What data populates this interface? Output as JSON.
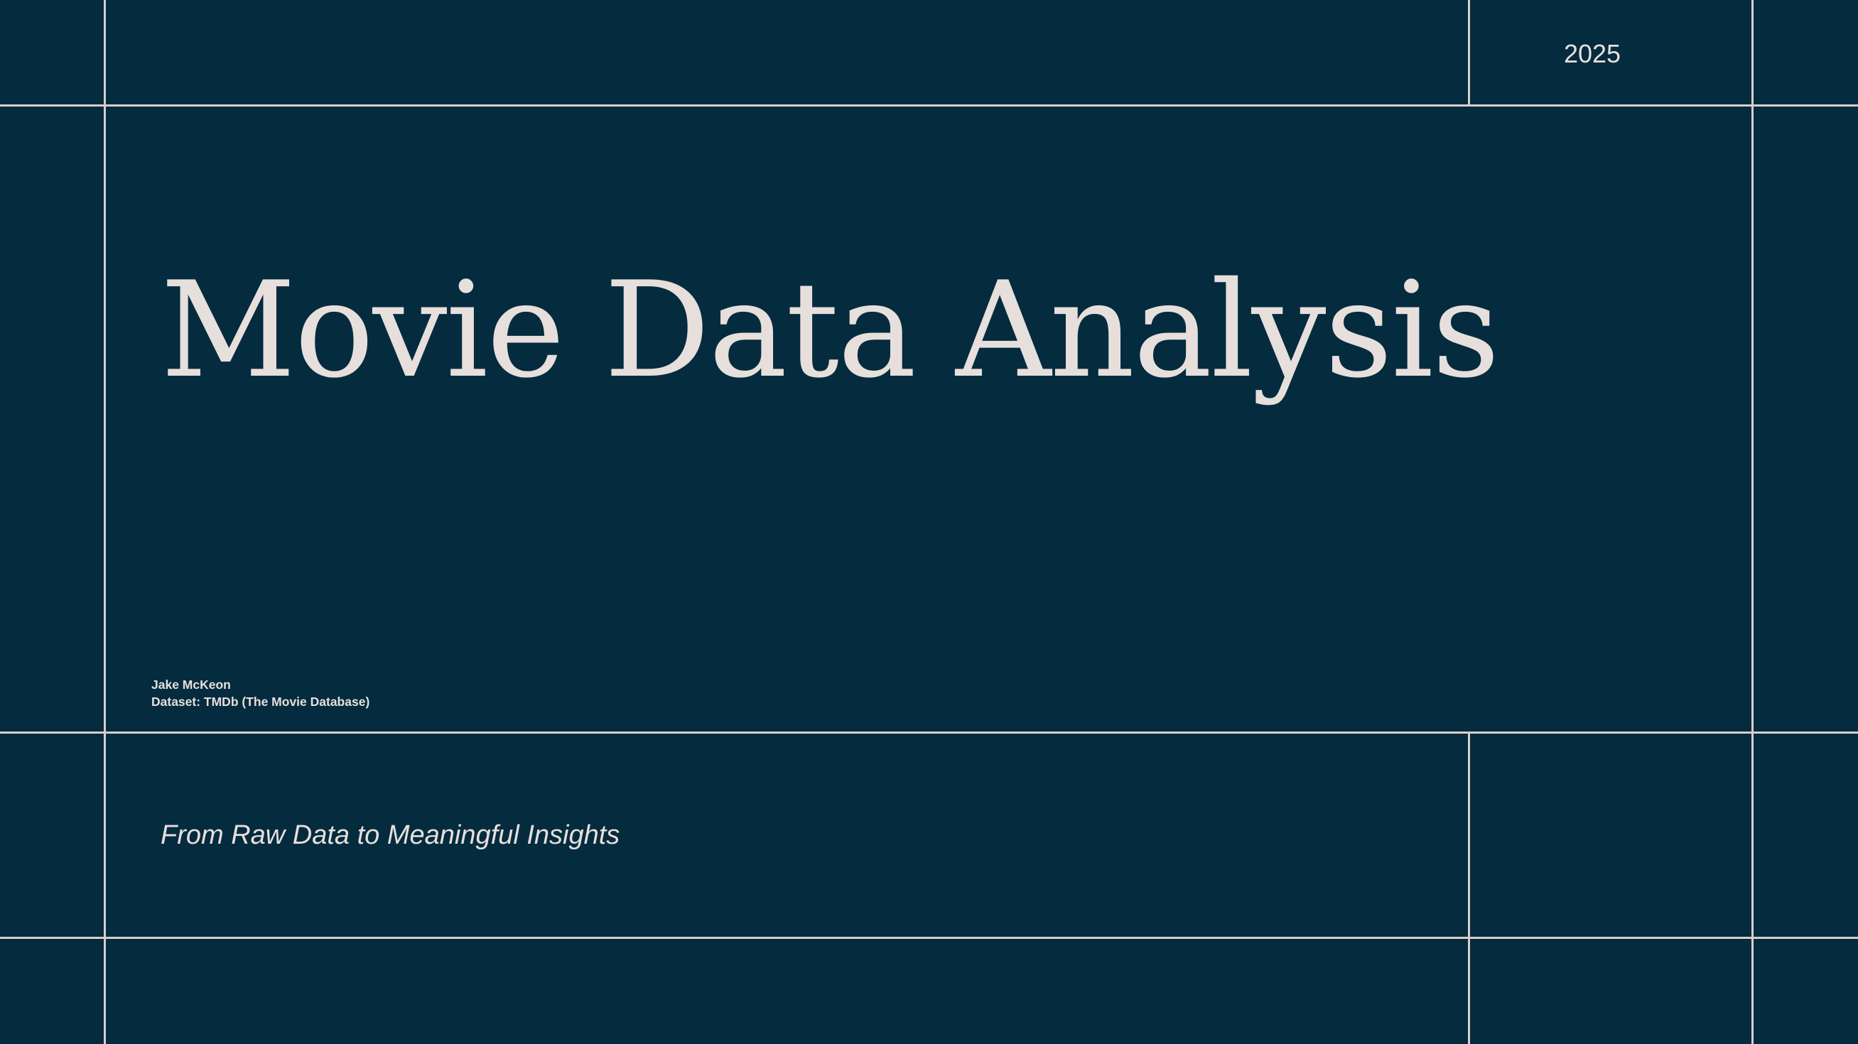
{
  "slide": {
    "year": "2025",
    "title": "Movie Data Analysis",
    "author": "Jake McKeon",
    "dataset": "Dataset: TMDb (The Movie Database)",
    "tagline": "From Raw Data to Meaningful Insights"
  },
  "colors": {
    "background": "#042b3e",
    "text": "#e7dfdc",
    "grid_lines": "#d9cfcc"
  }
}
